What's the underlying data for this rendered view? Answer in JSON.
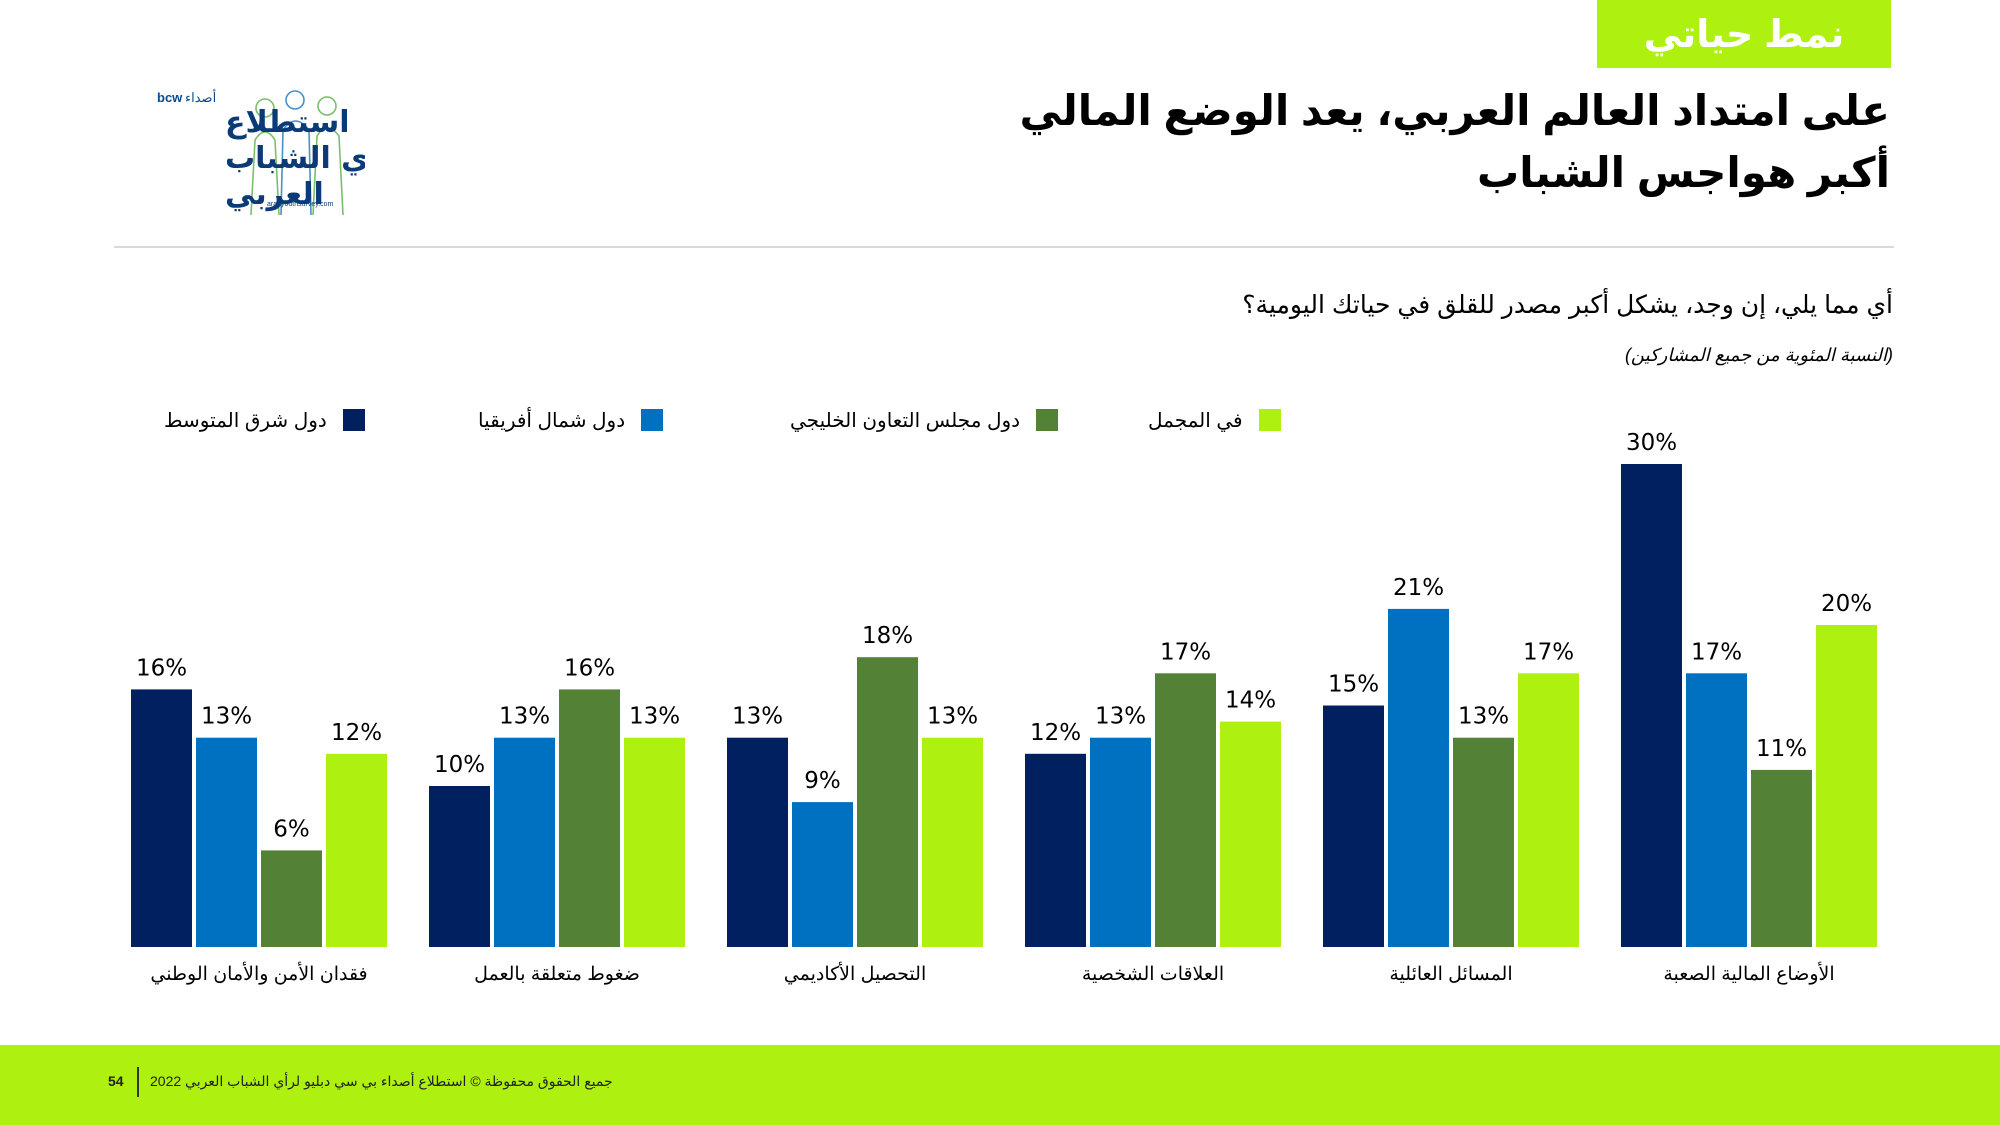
{
  "header": {
    "tag": "نمط حياتي",
    "title": "على امتداد العالم العربي، يعد الوضع المالي أكبر هواجس الشباب",
    "question": "أي مما يلي، إن وجد، يشكل أكبر مصدر للقلق في حياتك اليومية؟",
    "subnote": "(النسبة المئوية من جميع المشاركين)"
  },
  "logo": {
    "brand": "bcw",
    "partner": "أصداء",
    "line1": "استطلاع",
    "line2": "رأي الشباب",
    "line3": "العربي",
    "url": "arabyouthsurvey.com"
  },
  "colors": {
    "accent": "#aef00f",
    "series": [
      "#002060",
      "#0070c0",
      "#538135",
      "#aef00f"
    ]
  },
  "chart_data": {
    "type": "bar",
    "categories": [
      "الأوضاع المالية الصعبة",
      "المسائل العائلية",
      "العلاقات الشخصية",
      "التحصيل الأكاديمي",
      "ضغوط متعلقة بالعمل",
      "فقدان الأمن والأمان الوطني"
    ],
    "series": [
      {
        "name": "دول شرق المتوسط",
        "values": [
          30,
          15,
          12,
          13,
          10,
          16
        ]
      },
      {
        "name": "دول شمال أفريقيا",
        "values": [
          17,
          21,
          13,
          9,
          13,
          13
        ]
      },
      {
        "name": "دول مجلس التعاون الخليجي",
        "values": [
          11,
          13,
          17,
          18,
          16,
          6
        ]
      },
      {
        "name": "في المجمل",
        "values": [
          20,
          17,
          14,
          13,
          13,
          12
        ]
      }
    ],
    "value_suffix": "%",
    "ylim": [
      0,
      30
    ],
    "grid": false,
    "legend": "top",
    "category_order": "right-to-left"
  },
  "footer": {
    "text": "جميع الحقوق محفوظة © استطلاع أصداء بي سي دبليو لرأي الشباب العربي 2022",
    "page": "54"
  }
}
